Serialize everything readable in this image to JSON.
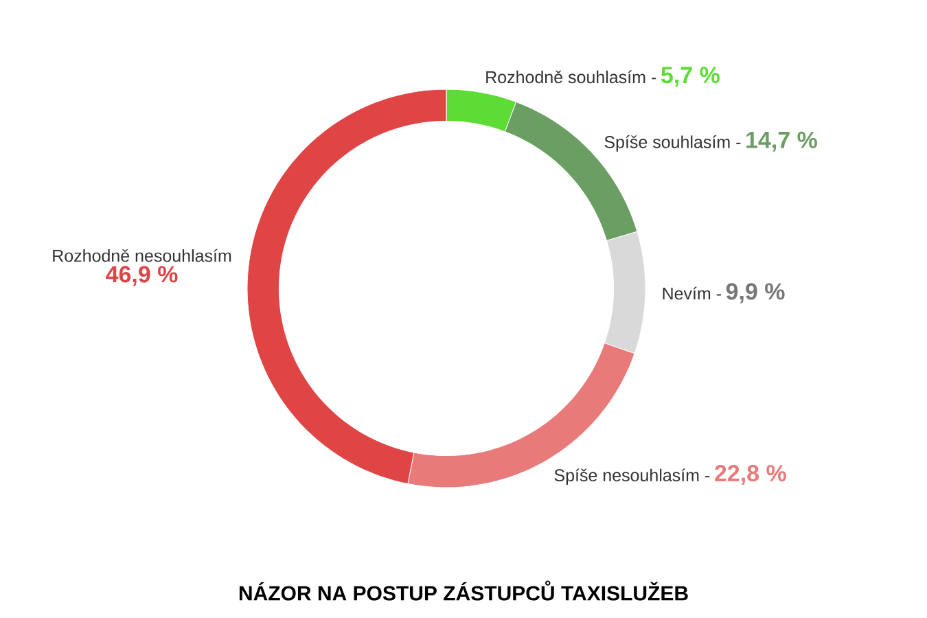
{
  "chart_data": {
    "type": "donut",
    "title": "NÁZOR NA POSTUP ZÁSTUPCŮ TAXISLUŽEB",
    "categories": [
      "Rozhodně souhlasím -",
      "Spíše souhlasím -",
      "Nevím -",
      "Spíše nesouhlasím -",
      "Rozhodně nesouhlasím"
    ],
    "values": [
      5.7,
      14.7,
      9.9,
      22.8,
      46.9
    ],
    "value_labels": [
      "5,7 %",
      "14,7 %",
      "9,9 %",
      "22,8 %",
      "46,9 %"
    ],
    "colors": [
      "#5ddc35",
      "#6a9e63",
      "#d9d9d9",
      "#e87a7a",
      "#e04545"
    ]
  }
}
